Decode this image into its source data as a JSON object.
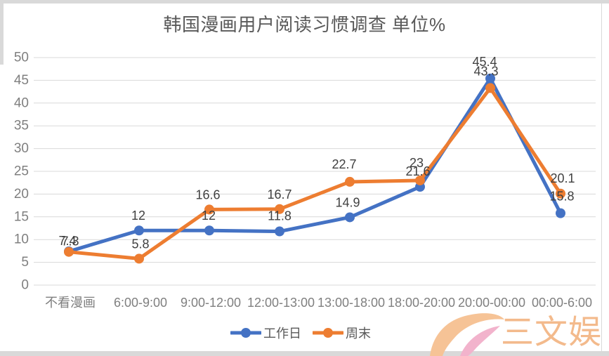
{
  "page": {
    "title": "韩国漫画用户阅读习惯调查 单位%"
  },
  "chart_data": {
    "type": "line",
    "title": "韩国漫画用户阅读习惯调查 单位%",
    "unit": "%",
    "categories": [
      "不看漫画",
      "6:00-9:00",
      "9:00-12:00",
      "12:00-13:00",
      "13:00-18:00",
      "18:00-20:00",
      "20:00-00:00",
      "00:00-6:00"
    ],
    "series": [
      {
        "name": "工作日",
        "color": "#4472C4",
        "values": [
          7.4,
          12,
          12,
          11.8,
          14.9,
          21.6,
          45.4,
          15.8
        ]
      },
      {
        "name": "周末",
        "color": "#ED7D31",
        "values": [
          7.3,
          5.8,
          16.6,
          16.7,
          22.7,
          23,
          43.3,
          20.1
        ]
      }
    ],
    "ylim": [
      0,
      50
    ],
    "ytick_step": 5,
    "grid": true,
    "legend_position": "bottom"
  },
  "legend": {
    "items": [
      {
        "label": "工作日",
        "color": "#4472C4"
      },
      {
        "label": "周末",
        "color": "#ED7D31"
      }
    ]
  },
  "watermark": {
    "text": "三文娱"
  },
  "colors": {
    "series_workday": "#4472C4",
    "series_weekend": "#ED7D31",
    "gridline": "#D9D9D9",
    "tick_text": "#7F7F7F",
    "axis_label_text": "#7F7F7F",
    "data_label_text": "#404040",
    "title_text": "#595959",
    "window_edge": "#D9D9D9",
    "watermark_orange": "#F6C396",
    "watermark_pink": "#F2B3CC",
    "watermark_text": "#F3BA8C"
  }
}
